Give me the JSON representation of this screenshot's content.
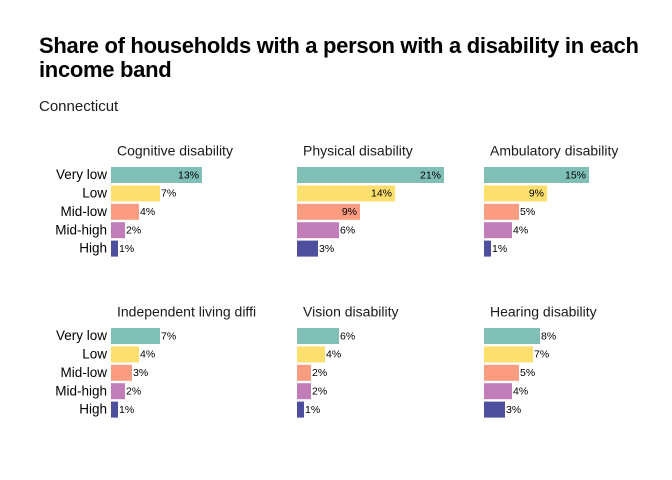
{
  "title": "Share of households with a person with a disability in each income band",
  "subtitle": "Connecticut",
  "colors": {
    "Very low": "#7fbfb6",
    "Low": "#fddf6e",
    "Mid-low": "#fb9b80",
    "Mid-high": "#c07db8",
    "High": "#4d4e9e"
  },
  "chart_data": {
    "type": "bar",
    "orientation": "horizontal",
    "categories": [
      "Very low",
      "Low",
      "Mid-low",
      "Mid-high",
      "High"
    ],
    "facets": [
      {
        "label": "Cognitive disability",
        "values": [
          13,
          7,
          4,
          2,
          1
        ],
        "value_labels": [
          "13%",
          "7%",
          "4%",
          "2%",
          "1%"
        ]
      },
      {
        "label": "Physical disability",
        "values": [
          21,
          14,
          9,
          6,
          3
        ],
        "value_labels": [
          "21%",
          "14%",
          "9%",
          "6%",
          "3%"
        ]
      },
      {
        "label": "Ambulatory disability",
        "values": [
          15,
          9,
          5,
          4,
          1
        ],
        "value_labels": [
          "15%",
          "9%",
          "5%",
          "4%",
          "1%"
        ]
      },
      {
        "label": "Independent living diffi",
        "values": [
          7,
          4,
          3,
          2,
          1
        ],
        "value_labels": [
          "7%",
          "4%",
          "3%",
          "2%",
          "1%"
        ]
      },
      {
        "label": "Vision disability",
        "values": [
          6,
          4,
          2,
          2,
          1
        ],
        "value_labels": [
          "6%",
          "4%",
          "2%",
          "2%",
          "1%"
        ]
      },
      {
        "label": "Hearing disability",
        "values": [
          8,
          7,
          5,
          4,
          3
        ],
        "value_labels": [
          "8%",
          "7%",
          "5%",
          "4%",
          "3%"
        ]
      }
    ],
    "grid": false,
    "legend": "none"
  }
}
